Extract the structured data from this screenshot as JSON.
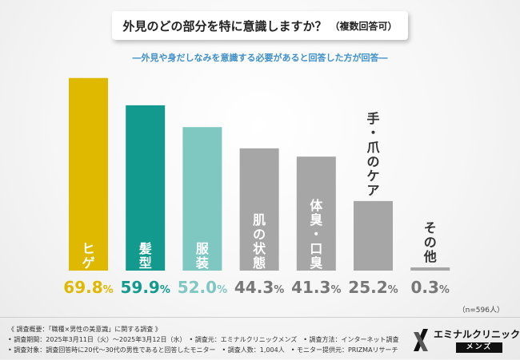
{
  "title": {
    "main": "外見のどの部分を特に意識しますか？",
    "note": "（複数回答可）"
  },
  "subtitle": "―外見や身だしなみを意識する必要があると回答した方が回答―",
  "n_note": "（n=596人）",
  "footer": {
    "line1": "《 調査概要：「職種×男性の美意識」に関する調査 》",
    "line2": "• 調査期間：2025年3月11日（火）〜2025年3月12日（水）　• 調査元：エミナルクリニックメンズ　• 調査方法：インターネット調査",
    "line3": "• 調査対象：調査回答時に20代〜30代の男性であると回答したモニター　• 調査人数：1,004人　• モニター提供元：PRIZMAリサーチ"
  },
  "logo": {
    "name": "エミナルクリニック",
    "sub": "メンズ"
  },
  "chart_data": {
    "type": "bar",
    "categories": [
      "ヒゲ",
      "髪型",
      "服装",
      "肌の状態",
      "体臭・口臭",
      "手・爪のケア",
      "その他"
    ],
    "values": [
      69.8,
      59.9,
      52.0,
      44.3,
      41.3,
      25.2,
      0.3
    ],
    "value_labels": [
      "69.8%",
      "59.9%",
      "52.0%",
      "44.3%",
      "41.3%",
      "25.2%",
      "0.3%"
    ],
    "unit": "%",
    "ylim": [
      0,
      70
    ],
    "grid": false,
    "legend": "none",
    "colors": [
      "#dfb800",
      "#129a8f",
      "#7fc7c1",
      "#a6a6a6",
      "#a6a6a6",
      "#a6a6a6",
      "#a6a6a6"
    ],
    "label_colors": [
      "#dfb800",
      "#129a8f",
      "#7fc7c1",
      "#777777",
      "#777777",
      "#777777",
      "#777777"
    ]
  }
}
